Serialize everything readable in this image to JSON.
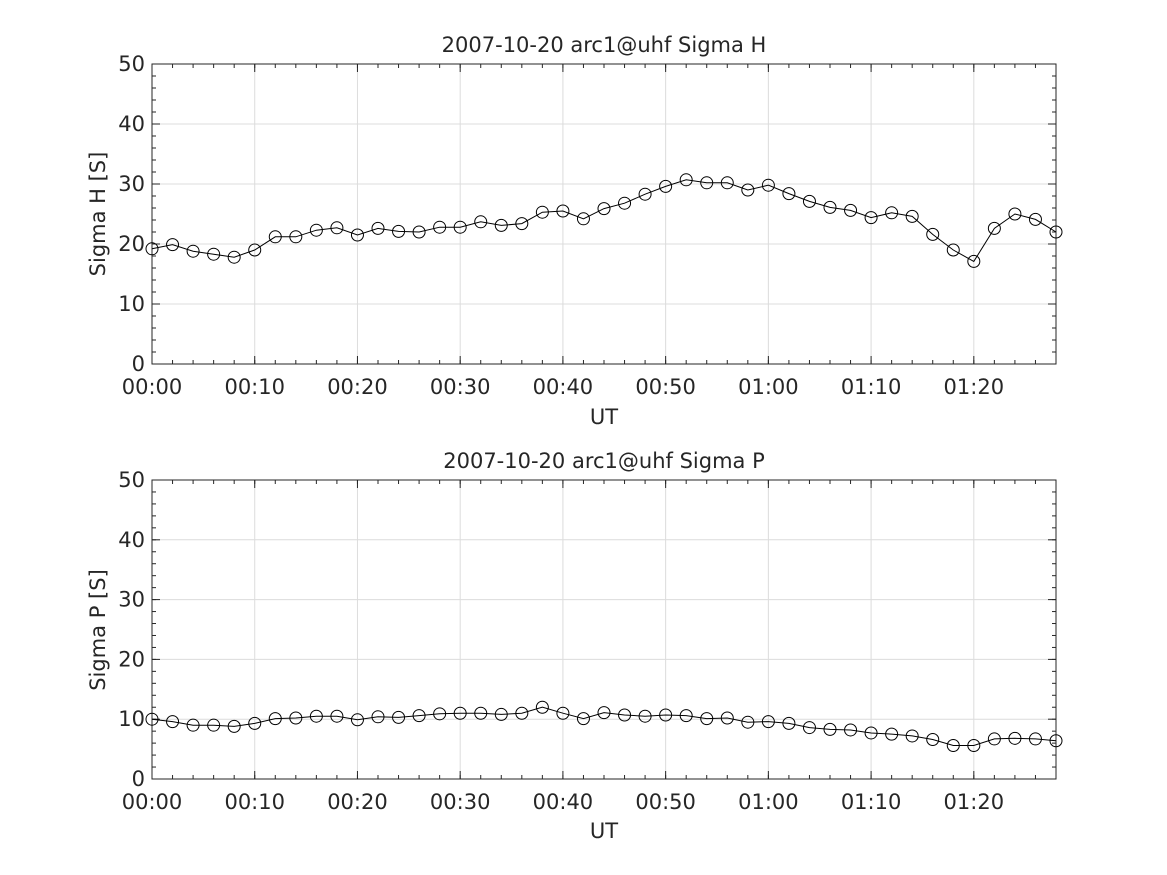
{
  "chart_data": [
    {
      "type": "line",
      "title": "2007-10-20  arc1@uhf Sigma H",
      "xlabel": "UT",
      "ylabel": "Sigma H [S]",
      "xlim": [
        0,
        88
      ],
      "ylim": [
        0,
        50
      ],
      "yticks": [
        0,
        10,
        20,
        30,
        40,
        50
      ],
      "xtick_labels": [
        "00:00",
        "00:10",
        "00:20",
        "00:30",
        "00:40",
        "00:50",
        "01:00",
        "01:10",
        "01:20"
      ],
      "xtick_minutes": [
        0,
        10,
        20,
        30,
        40,
        50,
        60,
        70,
        80
      ],
      "grid": true,
      "marker": "open-circle",
      "color": "#000000",
      "x_minutes": [
        0,
        2,
        4,
        6,
        8,
        10,
        12,
        14,
        16,
        18,
        20,
        22,
        24,
        26,
        28,
        30,
        32,
        34,
        36,
        38,
        40,
        42,
        44,
        46,
        48,
        50,
        52,
        54,
        56,
        58,
        60,
        62,
        64,
        66,
        68,
        70,
        72,
        74,
        76,
        78,
        80,
        82,
        84,
        86,
        88
      ],
      "values": [
        19.2,
        19.9,
        18.8,
        18.3,
        17.8,
        19.0,
        21.2,
        21.2,
        22.3,
        22.7,
        21.5,
        22.6,
        22.1,
        22.0,
        22.8,
        22.8,
        23.7,
        23.1,
        23.4,
        25.3,
        25.5,
        24.2,
        25.9,
        26.8,
        28.3,
        29.6,
        30.7,
        30.2,
        30.2,
        29.0,
        29.8,
        28.4,
        27.1,
        26.1,
        25.6,
        24.4,
        25.2,
        24.6,
        21.6,
        19.0,
        17.1,
        22.6,
        25.0,
        24.1,
        22.0
      ]
    },
    {
      "type": "line",
      "title": "2007-10-20  arc1@uhf Sigma P",
      "xlabel": "UT",
      "ylabel": "Sigma P [S]",
      "xlim": [
        0,
        88
      ],
      "ylim": [
        0,
        50
      ],
      "yticks": [
        0,
        10,
        20,
        30,
        40,
        50
      ],
      "xtick_labels": [
        "00:00",
        "00:10",
        "00:20",
        "00:30",
        "00:40",
        "00:50",
        "01:00",
        "01:10",
        "01:20"
      ],
      "xtick_minutes": [
        0,
        10,
        20,
        30,
        40,
        50,
        60,
        70,
        80
      ],
      "grid": true,
      "marker": "open-circle",
      "color": "#000000",
      "x_minutes": [
        0,
        2,
        4,
        6,
        8,
        10,
        12,
        14,
        16,
        18,
        20,
        22,
        24,
        26,
        28,
        30,
        32,
        34,
        36,
        38,
        40,
        42,
        44,
        46,
        48,
        50,
        52,
        54,
        56,
        58,
        60,
        62,
        64,
        66,
        68,
        70,
        72,
        74,
        76,
        78,
        80,
        82,
        84,
        86,
        88
      ],
      "values": [
        10.0,
        9.6,
        9.0,
        9.0,
        8.8,
        9.3,
        10.1,
        10.2,
        10.5,
        10.5,
        9.9,
        10.4,
        10.3,
        10.6,
        10.9,
        11.0,
        11.0,
        10.8,
        11.0,
        12.0,
        11.0,
        10.1,
        11.1,
        10.7,
        10.5,
        10.7,
        10.6,
        10.1,
        10.2,
        9.5,
        9.6,
        9.3,
        8.6,
        8.3,
        8.2,
        7.7,
        7.5,
        7.2,
        6.6,
        5.6,
        5.6,
        6.7,
        6.8,
        6.7,
        6.4
      ]
    }
  ]
}
